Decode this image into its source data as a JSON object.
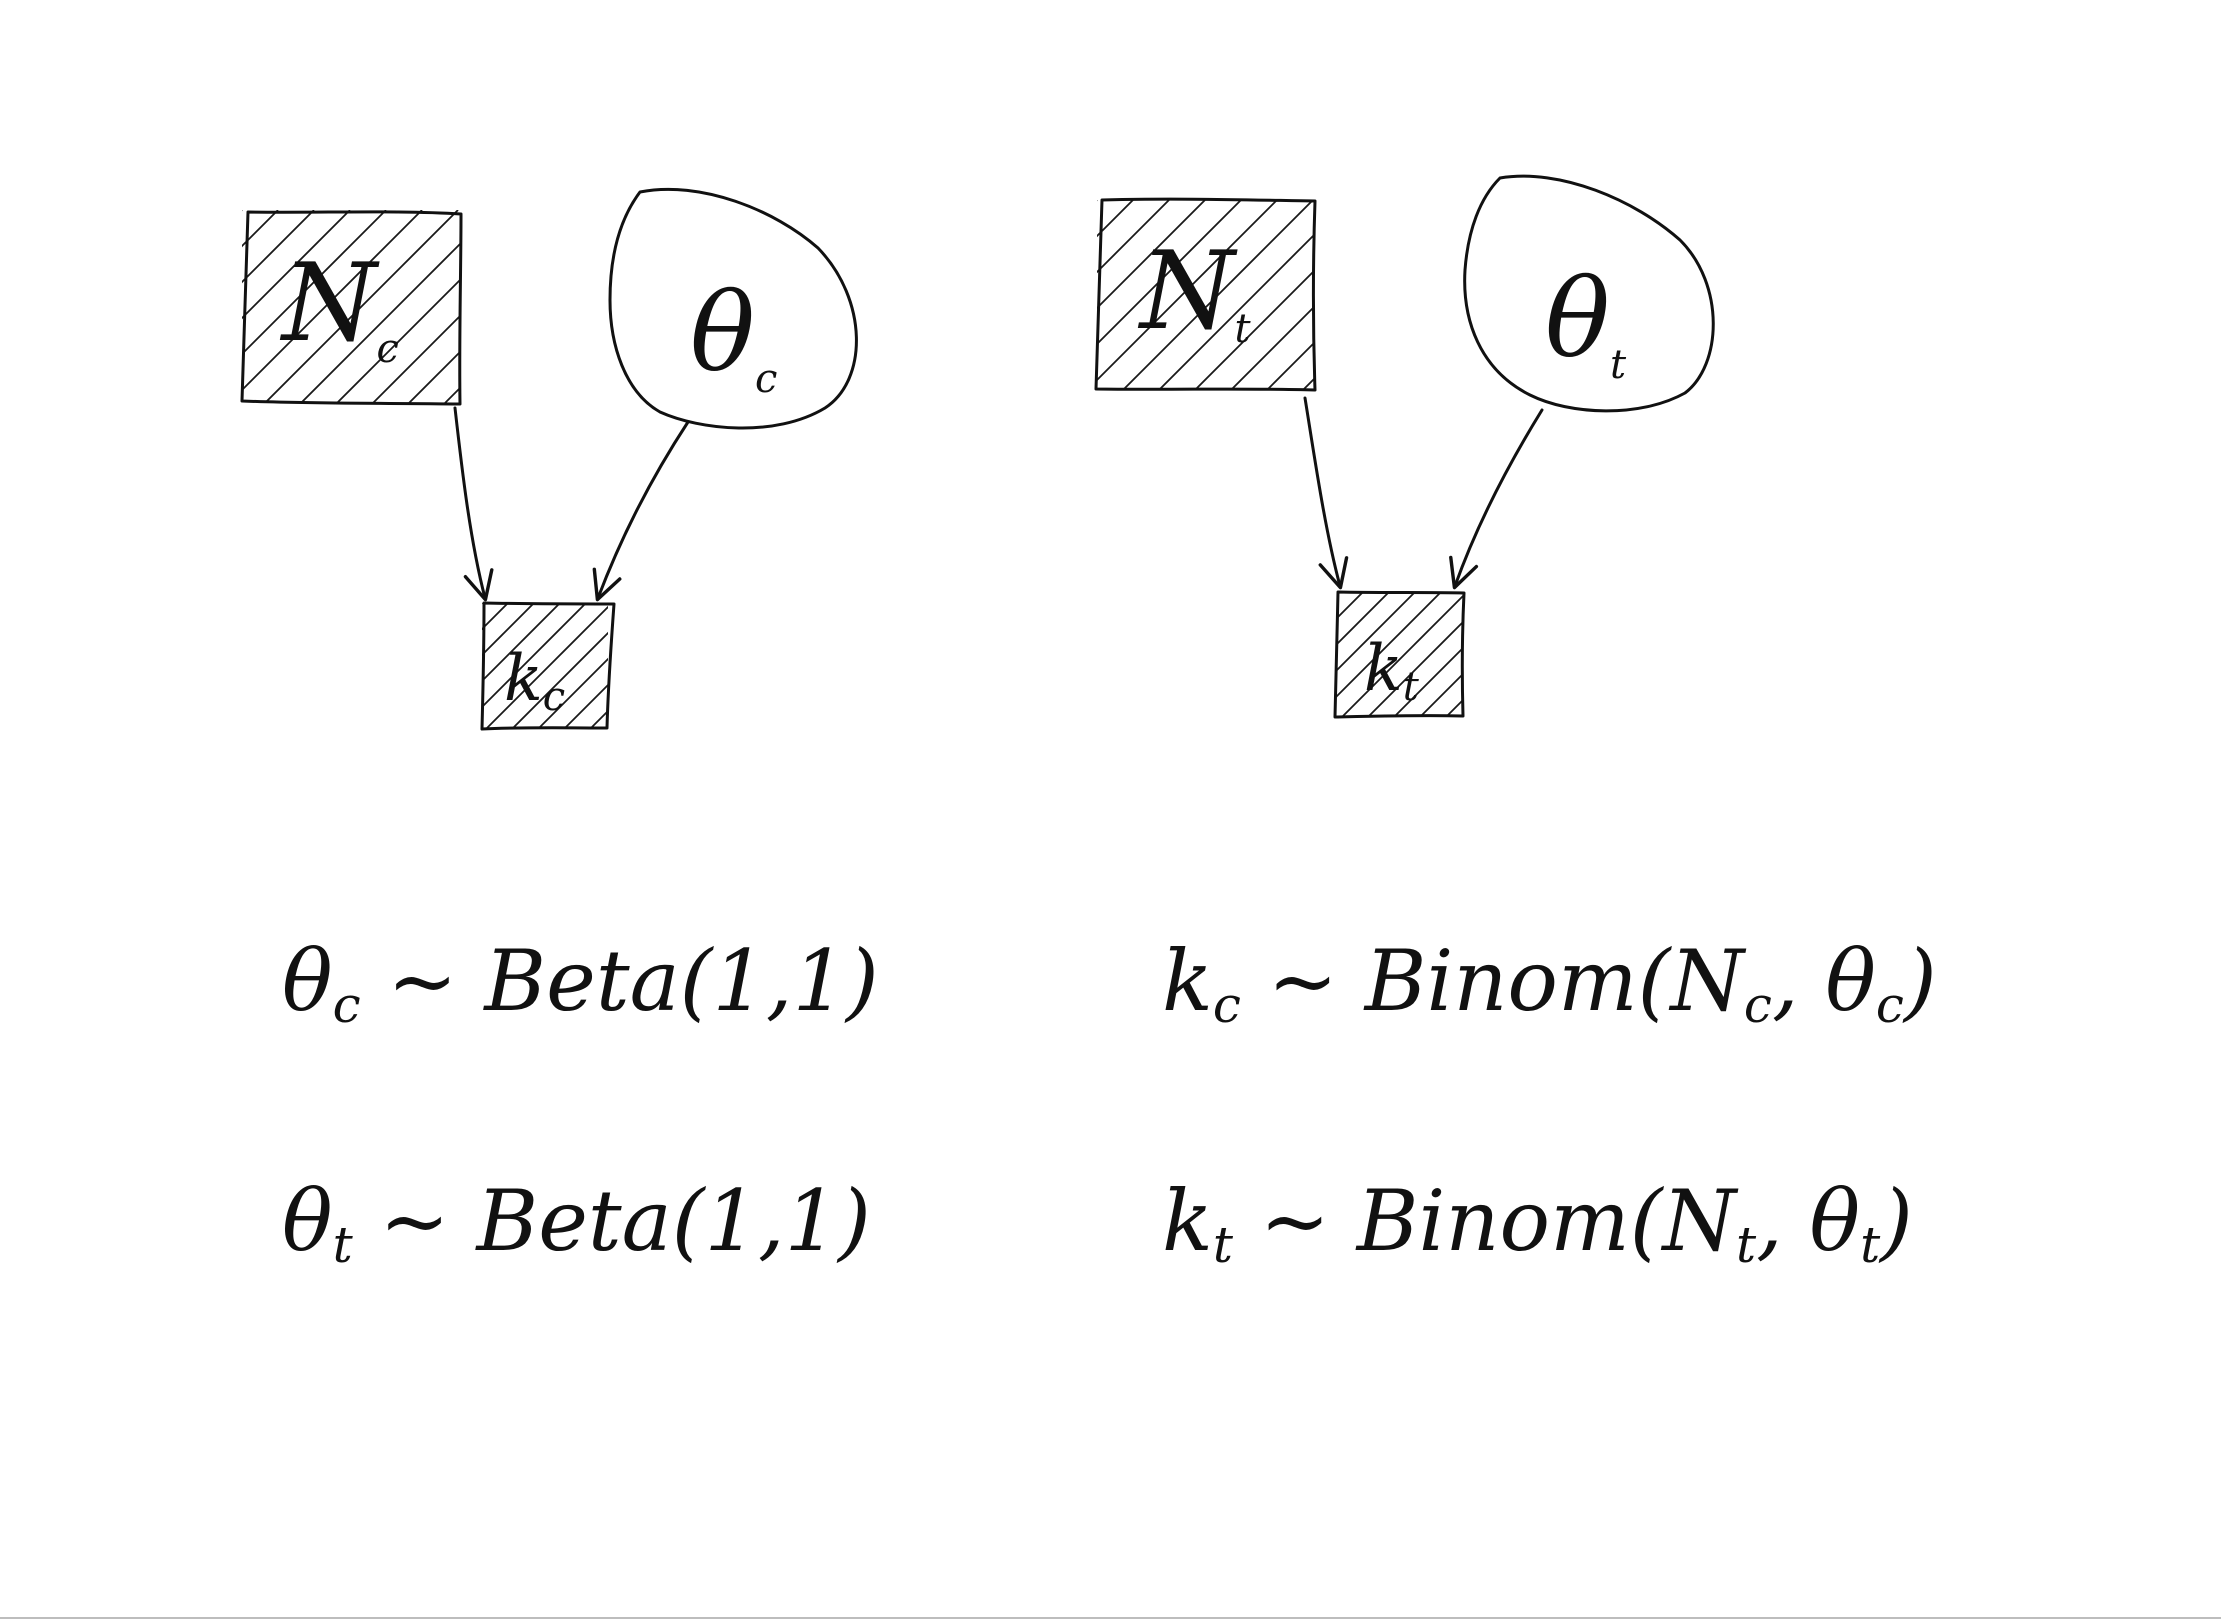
{
  "diagram": {
    "colors": {
      "ink": "#111111",
      "paper": "#ffffff"
    },
    "nodes": [
      {
        "id": "Nc",
        "shape": "square",
        "observed": true,
        "base": "N",
        "sub": "c"
      },
      {
        "id": "theta_c",
        "shape": "circle",
        "observed": false,
        "base": "θ",
        "sub": "c"
      },
      {
        "id": "kc",
        "shape": "square",
        "observed": true,
        "base": "k",
        "sub": "c"
      },
      {
        "id": "Nt",
        "shape": "square",
        "observed": true,
        "base": "N",
        "sub": "t"
      },
      {
        "id": "theta_t",
        "shape": "circle",
        "observed": false,
        "base": "θ",
        "sub": "t"
      },
      {
        "id": "kt",
        "shape": "square",
        "observed": true,
        "base": "k",
        "sub": "t"
      }
    ],
    "edges": [
      {
        "from": "Nc",
        "to": "kc"
      },
      {
        "from": "theta_c",
        "to": "kc"
      },
      {
        "from": "Nt",
        "to": "kt"
      },
      {
        "from": "theta_t",
        "to": "kt"
      }
    ],
    "equations": [
      {
        "var": "θ",
        "sub": "c",
        "tilde": " ~ ",
        "dist": "Beta(1,1)"
      },
      {
        "var": "k",
        "sub": "c",
        "tilde": " ~ ",
        "dist": "Binom(",
        "a": "N",
        "a_sub": "c",
        "sep": ", ",
        "b": "θ",
        "b_sub": "c",
        "close": ")"
      },
      {
        "var": "θ",
        "sub": "t",
        "tilde": " ~ ",
        "dist": "Beta(1,1)"
      },
      {
        "var": "k",
        "sub": "t",
        "tilde": " ~ ",
        "dist": "Binom(",
        "a": "N",
        "a_sub": "t",
        "sep": ", ",
        "b": "θ",
        "b_sub": "t",
        "close": ")"
      }
    ]
  }
}
